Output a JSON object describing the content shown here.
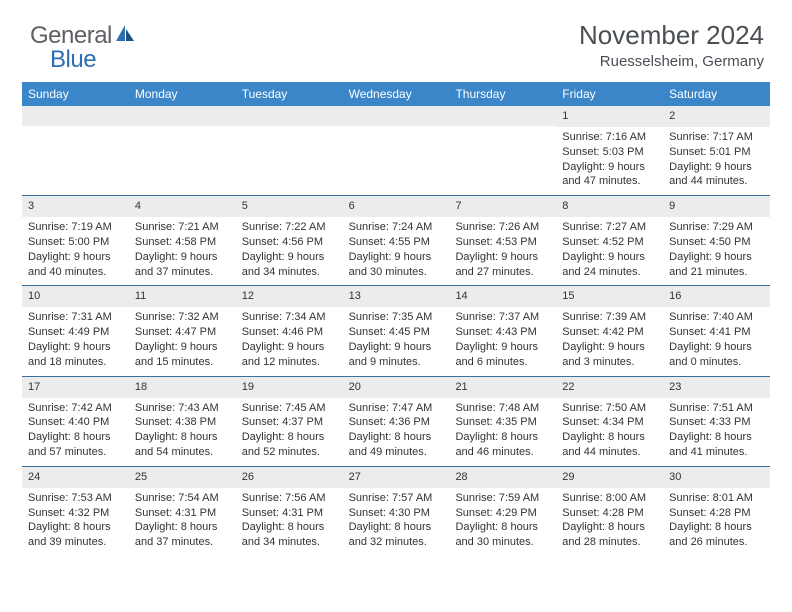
{
  "logo": {
    "text1": "General",
    "text2": "Blue"
  },
  "header": {
    "month_title": "November 2024",
    "location": "Ruesselsheim, Germany"
  },
  "theme": {
    "header_bg": "#3a86c8",
    "header_text": "#ffffff",
    "row_border": "#3a6fa0",
    "daynum_bg": "#ececec",
    "body_text": "#333333",
    "title_text": "#4a4f55",
    "logo_general": "#5d6166",
    "logo_blue": "#2c6fb5",
    "background": "#ffffff"
  },
  "calendar": {
    "type": "table",
    "day_names": [
      "Sunday",
      "Monday",
      "Tuesday",
      "Wednesday",
      "Thursday",
      "Friday",
      "Saturday"
    ],
    "weeks": [
      [
        null,
        null,
        null,
        null,
        null,
        {
          "day": "1",
          "sunrise": "Sunrise: 7:16 AM",
          "sunset": "Sunset: 5:03 PM",
          "daylight1": "Daylight: 9 hours",
          "daylight2": "and 47 minutes."
        },
        {
          "day": "2",
          "sunrise": "Sunrise: 7:17 AM",
          "sunset": "Sunset: 5:01 PM",
          "daylight1": "Daylight: 9 hours",
          "daylight2": "and 44 minutes."
        }
      ],
      [
        {
          "day": "3",
          "sunrise": "Sunrise: 7:19 AM",
          "sunset": "Sunset: 5:00 PM",
          "daylight1": "Daylight: 9 hours",
          "daylight2": "and 40 minutes."
        },
        {
          "day": "4",
          "sunrise": "Sunrise: 7:21 AM",
          "sunset": "Sunset: 4:58 PM",
          "daylight1": "Daylight: 9 hours",
          "daylight2": "and 37 minutes."
        },
        {
          "day": "5",
          "sunrise": "Sunrise: 7:22 AM",
          "sunset": "Sunset: 4:56 PM",
          "daylight1": "Daylight: 9 hours",
          "daylight2": "and 34 minutes."
        },
        {
          "day": "6",
          "sunrise": "Sunrise: 7:24 AM",
          "sunset": "Sunset: 4:55 PM",
          "daylight1": "Daylight: 9 hours",
          "daylight2": "and 30 minutes."
        },
        {
          "day": "7",
          "sunrise": "Sunrise: 7:26 AM",
          "sunset": "Sunset: 4:53 PM",
          "daylight1": "Daylight: 9 hours",
          "daylight2": "and 27 minutes."
        },
        {
          "day": "8",
          "sunrise": "Sunrise: 7:27 AM",
          "sunset": "Sunset: 4:52 PM",
          "daylight1": "Daylight: 9 hours",
          "daylight2": "and 24 minutes."
        },
        {
          "day": "9",
          "sunrise": "Sunrise: 7:29 AM",
          "sunset": "Sunset: 4:50 PM",
          "daylight1": "Daylight: 9 hours",
          "daylight2": "and 21 minutes."
        }
      ],
      [
        {
          "day": "10",
          "sunrise": "Sunrise: 7:31 AM",
          "sunset": "Sunset: 4:49 PM",
          "daylight1": "Daylight: 9 hours",
          "daylight2": "and 18 minutes."
        },
        {
          "day": "11",
          "sunrise": "Sunrise: 7:32 AM",
          "sunset": "Sunset: 4:47 PM",
          "daylight1": "Daylight: 9 hours",
          "daylight2": "and 15 minutes."
        },
        {
          "day": "12",
          "sunrise": "Sunrise: 7:34 AM",
          "sunset": "Sunset: 4:46 PM",
          "daylight1": "Daylight: 9 hours",
          "daylight2": "and 12 minutes."
        },
        {
          "day": "13",
          "sunrise": "Sunrise: 7:35 AM",
          "sunset": "Sunset: 4:45 PM",
          "daylight1": "Daylight: 9 hours",
          "daylight2": "and 9 minutes."
        },
        {
          "day": "14",
          "sunrise": "Sunrise: 7:37 AM",
          "sunset": "Sunset: 4:43 PM",
          "daylight1": "Daylight: 9 hours",
          "daylight2": "and 6 minutes."
        },
        {
          "day": "15",
          "sunrise": "Sunrise: 7:39 AM",
          "sunset": "Sunset: 4:42 PM",
          "daylight1": "Daylight: 9 hours",
          "daylight2": "and 3 minutes."
        },
        {
          "day": "16",
          "sunrise": "Sunrise: 7:40 AM",
          "sunset": "Sunset: 4:41 PM",
          "daylight1": "Daylight: 9 hours",
          "daylight2": "and 0 minutes."
        }
      ],
      [
        {
          "day": "17",
          "sunrise": "Sunrise: 7:42 AM",
          "sunset": "Sunset: 4:40 PM",
          "daylight1": "Daylight: 8 hours",
          "daylight2": "and 57 minutes."
        },
        {
          "day": "18",
          "sunrise": "Sunrise: 7:43 AM",
          "sunset": "Sunset: 4:38 PM",
          "daylight1": "Daylight: 8 hours",
          "daylight2": "and 54 minutes."
        },
        {
          "day": "19",
          "sunrise": "Sunrise: 7:45 AM",
          "sunset": "Sunset: 4:37 PM",
          "daylight1": "Daylight: 8 hours",
          "daylight2": "and 52 minutes."
        },
        {
          "day": "20",
          "sunrise": "Sunrise: 7:47 AM",
          "sunset": "Sunset: 4:36 PM",
          "daylight1": "Daylight: 8 hours",
          "daylight2": "and 49 minutes."
        },
        {
          "day": "21",
          "sunrise": "Sunrise: 7:48 AM",
          "sunset": "Sunset: 4:35 PM",
          "daylight1": "Daylight: 8 hours",
          "daylight2": "and 46 minutes."
        },
        {
          "day": "22",
          "sunrise": "Sunrise: 7:50 AM",
          "sunset": "Sunset: 4:34 PM",
          "daylight1": "Daylight: 8 hours",
          "daylight2": "and 44 minutes."
        },
        {
          "day": "23",
          "sunrise": "Sunrise: 7:51 AM",
          "sunset": "Sunset: 4:33 PM",
          "daylight1": "Daylight: 8 hours",
          "daylight2": "and 41 minutes."
        }
      ],
      [
        {
          "day": "24",
          "sunrise": "Sunrise: 7:53 AM",
          "sunset": "Sunset: 4:32 PM",
          "daylight1": "Daylight: 8 hours",
          "daylight2": "and 39 minutes."
        },
        {
          "day": "25",
          "sunrise": "Sunrise: 7:54 AM",
          "sunset": "Sunset: 4:31 PM",
          "daylight1": "Daylight: 8 hours",
          "daylight2": "and 37 minutes."
        },
        {
          "day": "26",
          "sunrise": "Sunrise: 7:56 AM",
          "sunset": "Sunset: 4:31 PM",
          "daylight1": "Daylight: 8 hours",
          "daylight2": "and 34 minutes."
        },
        {
          "day": "27",
          "sunrise": "Sunrise: 7:57 AM",
          "sunset": "Sunset: 4:30 PM",
          "daylight1": "Daylight: 8 hours",
          "daylight2": "and 32 minutes."
        },
        {
          "day": "28",
          "sunrise": "Sunrise: 7:59 AM",
          "sunset": "Sunset: 4:29 PM",
          "daylight1": "Daylight: 8 hours",
          "daylight2": "and 30 minutes."
        },
        {
          "day": "29",
          "sunrise": "Sunrise: 8:00 AM",
          "sunset": "Sunset: 4:28 PM",
          "daylight1": "Daylight: 8 hours",
          "daylight2": "and 28 minutes."
        },
        {
          "day": "30",
          "sunrise": "Sunrise: 8:01 AM",
          "sunset": "Sunset: 4:28 PM",
          "daylight1": "Daylight: 8 hours",
          "daylight2": "and 26 minutes."
        }
      ]
    ]
  }
}
